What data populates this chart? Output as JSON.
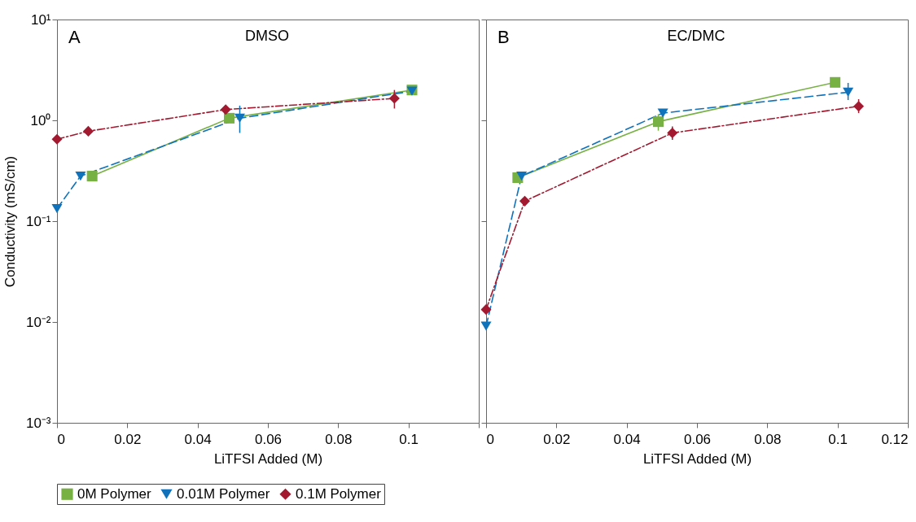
{
  "chart_data": [
    {
      "type": "line",
      "title": "DMSO",
      "ylabel": "Conductivity (mS/cm)",
      "xlabel": "LiTFSI Added (M)",
      "annotations": [
        "A"
      ],
      "log": "y",
      "legend": "bottom",
      "xlim": [
        0,
        0.12
      ],
      "xticks": [
        0,
        0.02,
        0.04,
        0.06,
        0.08,
        0.1,
        {
          "value": 0.12,
          "label": null
        }
      ],
      "ylim": [
        0.001,
        10
      ],
      "yticks": [
        {
          "value": 0.001,
          "label": "10⁻³"
        },
        {
          "value": 0.01,
          "label": "10⁻²"
        },
        {
          "value": 0.1,
          "label": "10⁻¹"
        },
        {
          "value": 1,
          "label": "10⁰"
        },
        {
          "value": 10,
          "label": "10¹"
        }
      ],
      "series": [
        {
          "name": "0M Polymer",
          "color": "#77b043",
          "marker": "square",
          "line_style": "solid",
          "x": [
            0.01,
            0.049,
            0.101
          ],
          "values": [
            0.28,
            1.05,
            2.0
          ],
          "errors": [
            null,
            null,
            null
          ]
        },
        {
          "name": "0.01M Polymer",
          "color": "#0f72bb",
          "marker": "triangle",
          "line_style": "dashed",
          "x": [
            0,
            0.0067,
            0.052,
            0.101
          ],
          "values": [
            0.133,
            0.28,
            1.05,
            1.95
          ],
          "errors": [
            null,
            null,
            [
              0.75,
              1.4
            ],
            null
          ]
        },
        {
          "name": "0.1M Polymer",
          "color": "#a31a30",
          "marker": "diamond",
          "line_style": "dashdot",
          "x": [
            0,
            0.0089,
            0.048,
            0.096
          ],
          "values": [
            0.65,
            0.78,
            1.28,
            1.65
          ],
          "errors": [
            null,
            null,
            null,
            [
              1.31,
              2.0
            ]
          ]
        }
      ]
    },
    {
      "type": "line",
      "title": "EC/DMC",
      "xlabel": "LiTFSI Added (M)",
      "annotations": [
        "B"
      ],
      "log": "y",
      "tick_labels": "x",
      "xlim": [
        0,
        0.12
      ],
      "xticks": [
        0,
        0.02,
        0.04,
        0.06,
        0.08,
        0.1,
        0.12
      ],
      "ylim": [
        0.001,
        10
      ],
      "yticks": [
        {
          "value": 0.001,
          "label": null
        },
        {
          "value": 0.01,
          "label": null
        },
        {
          "value": 0.1,
          "label": null
        },
        {
          "value": 1,
          "label": null
        },
        {
          "value": 10,
          "label": null
        }
      ],
      "series": [
        {
          "name": "0M Polymer",
          "color": "#77b043",
          "marker": "square",
          "line_style": "solid",
          "x": [
            0.009,
            0.049,
            0.0993
          ],
          "values": [
            0.27,
            0.97,
            2.38
          ],
          "errors": [
            null,
            [
              0.79,
              1.15
            ],
            null
          ]
        },
        {
          "name": "0.01M Polymer",
          "color": "#0f72bb",
          "marker": "triangle",
          "line_style": "dashed",
          "x": [
            0,
            0.0101,
            0.0503,
            0.103
          ],
          "values": [
            0.0091,
            0.28,
            1.18,
            1.9
          ],
          "errors": [
            null,
            null,
            null,
            [
              1.59,
              2.35
            ]
          ]
        },
        {
          "name": "0.1M Polymer",
          "color": "#a31a30",
          "marker": "diamond",
          "line_style": "dashdot",
          "x": [
            0,
            0.011,
            0.053,
            0.106
          ],
          "values": [
            0.0133,
            0.158,
            0.75,
            1.38
          ],
          "errors": [
            null,
            null,
            [
              0.64,
              0.87
            ],
            [
              1.18,
              1.62
            ]
          ]
        }
      ]
    }
  ]
}
